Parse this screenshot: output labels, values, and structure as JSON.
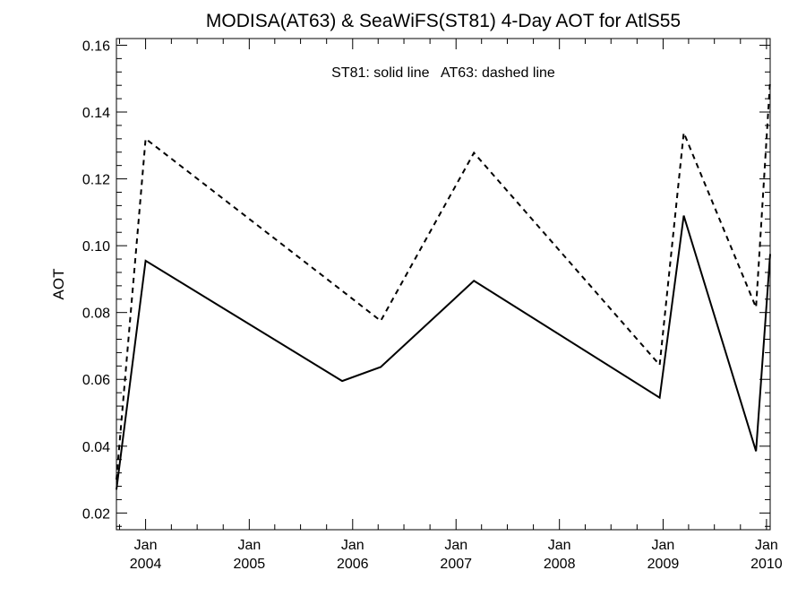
{
  "chart_data": {
    "type": "line",
    "title": "MODISA(AT63) & SeaWiFS(ST81) 4-Day AOT for AtlS55",
    "annotation": "ST81: solid line   AT63: dashed line",
    "xlabel": "",
    "ylabel": "AOT",
    "xlim": [
      "2003-09-20",
      "2010-01-14"
    ],
    "ylim": [
      0.015,
      0.162
    ],
    "yticks": [
      "0.02",
      "0.04",
      "0.06",
      "0.08",
      "0.10",
      "0.12",
      "0.14",
      "0.16"
    ],
    "xticks": [
      {
        "date": "2004-01-01",
        "month": "Jan",
        "year": "2004"
      },
      {
        "date": "2005-01-01",
        "month": "Jan",
        "year": "2005"
      },
      {
        "date": "2006-01-01",
        "month": "Jan",
        "year": "2006"
      },
      {
        "date": "2007-01-01",
        "month": "Jan",
        "year": "2007"
      },
      {
        "date": "2008-01-01",
        "month": "Jan",
        "year": "2008"
      },
      {
        "date": "2009-01-01",
        "month": "Jan",
        "year": "2009"
      },
      {
        "date": "2010-01-01",
        "month": "Jan",
        "year": "2010"
      }
    ],
    "grid": false,
    "series": [
      {
        "name": "ST81",
        "style": "solid",
        "color": "#000000",
        "points": [
          {
            "x": "2003-09-20",
            "y": 0.027
          },
          {
            "x": "2004-01-01",
            "y": 0.0955
          },
          {
            "x": "2005-11-25",
            "y": 0.0595
          },
          {
            "x": "2006-04-10",
            "y": 0.0637
          },
          {
            "x": "2007-03-05",
            "y": 0.0895
          },
          {
            "x": "2008-12-20",
            "y": 0.0545
          },
          {
            "x": "2009-03-15",
            "y": 0.109
          },
          {
            "x": "2009-11-25",
            "y": 0.0385
          },
          {
            "x": "2010-01-14",
            "y": 0.0975
          }
        ]
      },
      {
        "name": "AT63",
        "style": "dashed",
        "color": "#000000",
        "points": [
          {
            "x": "2003-09-20",
            "y": 0.03
          },
          {
            "x": "2004-01-01",
            "y": 0.132
          },
          {
            "x": "2005-11-25",
            "y": 0.0865
          },
          {
            "x": "2006-04-10",
            "y": 0.0775
          },
          {
            "x": "2007-03-05",
            "y": 0.1278
          },
          {
            "x": "2008-12-20",
            "y": 0.0643
          },
          {
            "x": "2009-03-15",
            "y": 0.1338
          },
          {
            "x": "2009-11-25",
            "y": 0.0815
          },
          {
            "x": "2010-01-14",
            "y": 0.1495
          }
        ]
      }
    ]
  }
}
